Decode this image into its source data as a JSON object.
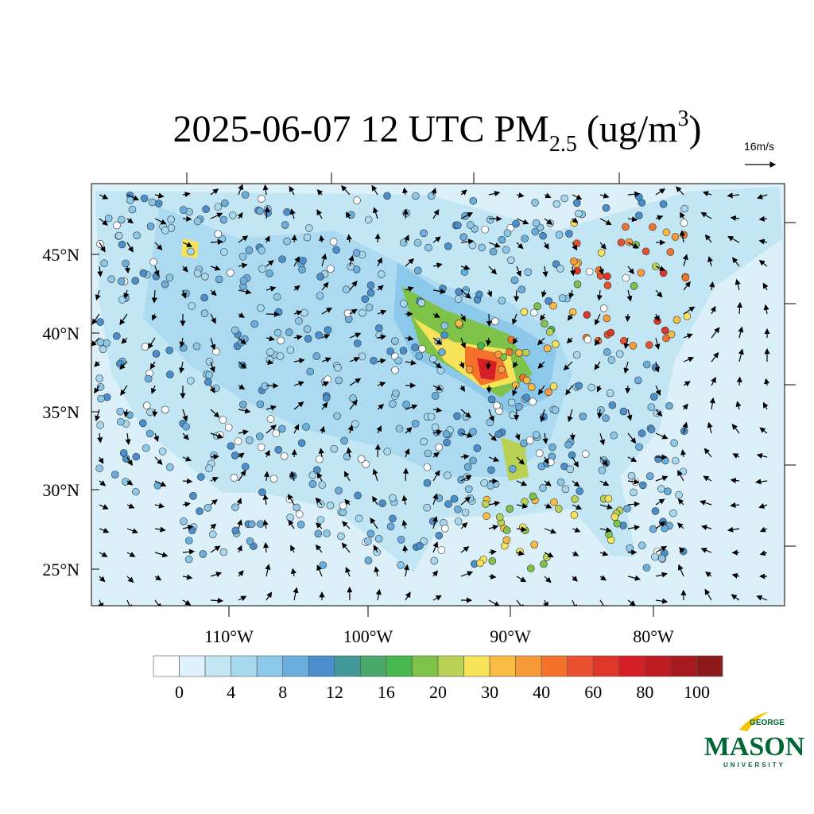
{
  "title": {
    "text_before": "2025-06-07 12 UTC PM",
    "subscript": "2.5",
    "middle": " (ug/m",
    "superscript": "3",
    "after": ")"
  },
  "vector_reference": "16m/s",
  "axes": {
    "lat_labels": [
      "45°N",
      "40°N",
      "35°N",
      "30°N",
      "25°N"
    ],
    "lon_labels": [
      "110°W",
      "100°W",
      "90°W",
      "80°W"
    ]
  },
  "colorbar": {
    "colors": [
      "#ffffff",
      "#dff2fb",
      "#c3e6f5",
      "#a6d8f0",
      "#8cc8ea",
      "#6aaedd",
      "#4a8fcc",
      "#43999a",
      "#4aa86a",
      "#47b64d",
      "#7fc24a",
      "#b9d155",
      "#f7e35a",
      "#f9bc45",
      "#f89a3a",
      "#f4722a",
      "#e85030",
      "#de3628",
      "#d41f26",
      "#bf1b22",
      "#a61a1f",
      "#8c1a1a"
    ],
    "labels": [
      0,
      4,
      8,
      12,
      16,
      20,
      30,
      40,
      60,
      80,
      100
    ]
  },
  "logo": {
    "line1": "GEORGE",
    "line2": "MASON",
    "line3": "UNIVERSITY"
  }
}
